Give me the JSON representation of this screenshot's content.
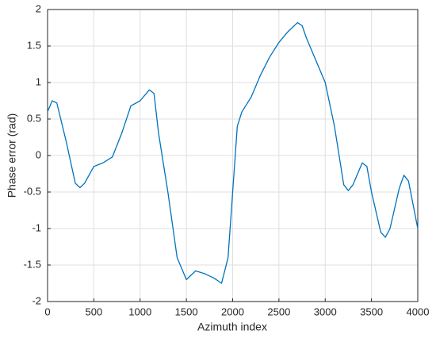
{
  "chart_data": {
    "type": "line",
    "xlabel": "Azimuth index",
    "ylabel": "Phase error (rad)",
    "x": [
      0,
      50,
      100,
      200,
      300,
      350,
      400,
      500,
      600,
      700,
      800,
      900,
      1000,
      1100,
      1150,
      1200,
      1300,
      1400,
      1500,
      1600,
      1700,
      1800,
      1880,
      1950,
      2000,
      2050,
      2100,
      2200,
      2300,
      2400,
      2500,
      2600,
      2700,
      2750,
      2800,
      2900,
      3000,
      3100,
      3200,
      3250,
      3300,
      3400,
      3450,
      3500,
      3600,
      3650,
      3700,
      3800,
      3850,
      3900,
      4000
    ],
    "series": [
      {
        "name": "Phase error",
        "color": "#0072bd",
        "values": [
          0.6,
          0.75,
          0.72,
          0.2,
          -0.38,
          -0.44,
          -0.38,
          -0.15,
          -0.1,
          -0.02,
          0.3,
          0.68,
          0.75,
          0.9,
          0.85,
          0.3,
          -0.5,
          -1.4,
          -1.7,
          -1.58,
          -1.62,
          -1.68,
          -1.75,
          -1.4,
          -0.5,
          0.4,
          0.6,
          0.8,
          1.1,
          1.35,
          1.55,
          1.7,
          1.82,
          1.78,
          1.6,
          1.3,
          1.0,
          0.4,
          -0.4,
          -0.48,
          -0.4,
          -0.1,
          -0.15,
          -0.5,
          -1.05,
          -1.12,
          -1.0,
          -0.45,
          -0.27,
          -0.35,
          -1.0
        ]
      }
    ],
    "xlim": [
      0,
      4000
    ],
    "xticks": [
      0,
      500,
      1000,
      1500,
      2000,
      2500,
      3000,
      3500,
      4000
    ],
    "ylim": [
      -2,
      2
    ],
    "yticks": [
      -2,
      -1.5,
      -1,
      -0.5,
      0,
      0.5,
      1,
      1.5,
      2
    ],
    "grid": true
  }
}
